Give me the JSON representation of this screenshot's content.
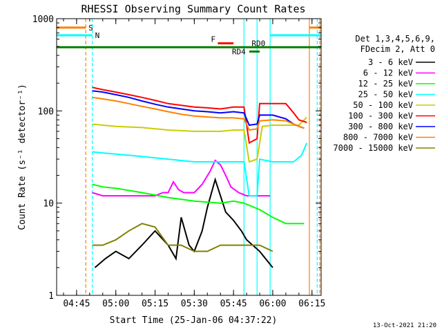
{
  "chart_data": {
    "type": "line",
    "title": "RHESSI Observing Summary Count Rates",
    "xlabel": "Start Time (25-Jan-06 04:37:22)",
    "ylabel": "Count Rate (s⁻¹ detector⁻¹)",
    "xlim": [
      "04:37:22",
      "06:18:30"
    ],
    "ylim": [
      1,
      1000
    ],
    "yscale": "log",
    "xticks": [
      "04:45",
      "05:00",
      "05:15",
      "05:30",
      "05:45",
      "06:00",
      "06:15"
    ],
    "yticks": [
      "1",
      "10",
      "100",
      "1000"
    ],
    "legend_header": [
      "Det 1,3,4,5,6,9,",
      "FDecim 2, Att 0"
    ],
    "legend_position": "right",
    "footer": "13-Oct-2021 21:20",
    "series": [
      {
        "name": "3 - 6 keV",
        "color": "#000000",
        "x": [
          "04:52",
          "04:56",
          "05:00",
          "05:05",
          "05:10",
          "05:15",
          "05:20",
          "05:23",
          "05:25",
          "05:28",
          "05:30",
          "05:33",
          "05:35",
          "05:38",
          "05:40",
          "05:42",
          "05:45",
          "05:48",
          "05:50",
          "05:55",
          "06:00"
        ],
        "y": [
          2.0,
          2.5,
          3.0,
          2.5,
          3.5,
          5.0,
          3.5,
          2.5,
          7.0,
          3.5,
          3.0,
          5.0,
          9.0,
          18.0,
          12.0,
          8.0,
          6.5,
          5.0,
          4.0,
          3.0,
          2.0
        ]
      },
      {
        "name": "6 - 12 keV",
        "color": "#ff00ff",
        "x": [
          "04:51",
          "04:55",
          "05:00",
          "05:10",
          "05:15",
          "05:18",
          "05:20",
          "05:22",
          "05:24",
          "05:26",
          "05:30",
          "05:33",
          "05:36",
          "05:38",
          "05:40",
          "05:42",
          "05:44",
          "05:47",
          "05:50",
          "05:55",
          "05:59"
        ],
        "y": [
          13,
          12,
          12,
          12,
          12,
          13,
          13,
          17,
          14,
          13,
          13,
          16,
          22,
          29,
          26,
          20,
          15,
          13,
          12,
          12,
          12
        ]
      },
      {
        "name": "12 - 25 keV",
        "color": "#00ff00",
        "x": [
          "04:51",
          "04:55",
          "05:00",
          "05:10",
          "05:20",
          "05:30",
          "05:40",
          "05:45",
          "05:49",
          "05:55",
          "06:00",
          "06:05",
          "06:08",
          "06:12"
        ],
        "y": [
          16,
          15,
          14.5,
          13,
          11.5,
          10.5,
          10,
          10.5,
          10,
          8.5,
          7.0,
          6.0,
          6.0,
          6.0
        ]
      },
      {
        "name": "25 - 50 keV",
        "color": "#00ffff",
        "x": [
          "04:51",
          "04:55",
          "05:00",
          "05:10",
          "05:20",
          "05:30",
          "05:40",
          "05:45",
          "05:49",
          "05:51",
          "05:54",
          "05:55",
          "06:00",
          "06:05",
          "06:08",
          "06:11",
          "06:13"
        ],
        "y": [
          36,
          35,
          34,
          32,
          30,
          28,
          28,
          28,
          28,
          12,
          12,
          30,
          28,
          28,
          28,
          33,
          45
        ]
      },
      {
        "name": "50 - 100 keV",
        "color": "#cccc00",
        "x": [
          "04:51",
          "04:55",
          "05:00",
          "05:10",
          "05:20",
          "05:30",
          "05:40",
          "05:45",
          "05:49",
          "05:51",
          "05:54",
          "05:56",
          "06:00",
          "06:05",
          "06:10",
          "06:13"
        ],
        "y": [
          72,
          70,
          68,
          66,
          62,
          60,
          60,
          62,
          62,
          28,
          30,
          68,
          70,
          70,
          70,
          85
        ]
      },
      {
        "name": "100 - 300 keV",
        "color": "#ff0000",
        "x": [
          "04:51",
          "04:55",
          "05:00",
          "05:05",
          "05:10",
          "05:15",
          "05:20",
          "05:25",
          "05:30",
          "05:35",
          "05:40",
          "05:45",
          "05:49",
          "05:51",
          "05:54",
          "05:55",
          "06:00",
          "06:05",
          "06:08",
          "06:10",
          "06:13"
        ],
        "y": [
          180,
          170,
          160,
          150,
          140,
          130,
          120,
          115,
          110,
          108,
          105,
          110,
          110,
          45,
          50,
          120,
          120,
          120,
          95,
          80,
          75
        ]
      },
      {
        "name": "300 - 800 keV",
        "color": "#0000ff",
        "x": [
          "04:51",
          "04:55",
          "05:00",
          "05:05",
          "05:10",
          "05:15",
          "05:20",
          "05:25",
          "05:30",
          "05:35",
          "05:40",
          "05:45",
          "05:49",
          "05:51",
          "05:54",
          "05:55",
          "06:00",
          "06:05",
          "06:08",
          "06:10",
          "06:12"
        ],
        "y": [
          165,
          160,
          150,
          140,
          128,
          118,
          110,
          105,
          100,
          98,
          95,
          98,
          95,
          70,
          72,
          90,
          90,
          82,
          72,
          68,
          65
        ]
      },
      {
        "name": "800 - 7000 keV",
        "color": "#ff8000",
        "x": [
          "04:51",
          "04:55",
          "05:00",
          "05:05",
          "05:10",
          "05:15",
          "05:20",
          "05:25",
          "05:30",
          "05:35",
          "05:40",
          "05:45",
          "05:49",
          "05:51",
          "05:54",
          "05:55",
          "06:00",
          "06:05",
          "06:08",
          "06:10",
          "06:12"
        ],
        "y": [
          140,
          135,
          128,
          120,
          112,
          105,
          98,
          92,
          88,
          86,
          84,
          84,
          82,
          62,
          64,
          78,
          80,
          78,
          72,
          68,
          65
        ]
      },
      {
        "name": "7000 - 15000 keV",
        "color": "#808000",
        "x": [
          "04:51",
          "04:55",
          "05:00",
          "05:05",
          "05:10",
          "05:15",
          "05:20",
          "05:25",
          "05:30",
          "05:35",
          "05:40",
          "05:45",
          "05:50",
          "05:55",
          "06:00"
        ],
        "y": [
          3.5,
          3.5,
          4.0,
          5.0,
          6.0,
          5.5,
          3.5,
          3.5,
          3.0,
          3.0,
          3.5,
          3.5,
          3.5,
          3.5,
          3.0
        ]
      }
    ],
    "annotations": [
      {
        "label": "S",
        "color": "#ff8000",
        "x_start": "04:37:22",
        "x_end": "04:48:30",
        "y": 800
      },
      {
        "label": "N",
        "color": "#00ffff",
        "x_start": "04:37:22",
        "x_end": "04:51:00",
        "y": 660
      },
      {
        "label": "F",
        "color": "#ff0000",
        "x_start": "05:39:00",
        "x_end": "05:45:00",
        "y": 540
      },
      {
        "label": "RD0",
        "color": "#008000",
        "x_start": "04:37:22",
        "x_end": "06:18:30",
        "y": 490
      },
      {
        "label": "RD4",
        "color": "#008000",
        "x_start": "05:51:00",
        "x_end": "05:55:00",
        "y": 440
      }
    ],
    "vertical_lines": [
      {
        "x": "04:48:30",
        "color": "#ff8000",
        "dash": true
      },
      {
        "x": "04:51:00",
        "color": "#00ffff",
        "dash": true
      },
      {
        "x": "05:59:00",
        "color": "#00ffff",
        "dash": false
      },
      {
        "x": "06:14:00",
        "color": "#ff8000",
        "dash": false
      },
      {
        "x": "06:17:00",
        "color": "#00ffff",
        "dash": true
      },
      {
        "x": "06:18:00",
        "color": "#ff8000",
        "dash": true
      },
      {
        "x": "05:49:00",
        "color": "#00ffff",
        "dash": false
      },
      {
        "x": "05:54:00",
        "color": "#00ffff",
        "dash": false
      }
    ],
    "top_segments": [
      {
        "color": "#ff8000",
        "x_start": "06:14:00",
        "x_end": "06:18:30",
        "y": 800
      },
      {
        "color": "#00ffff",
        "x_start": "05:59:00",
        "x_end": "06:18:30",
        "y": 660
      }
    ]
  }
}
